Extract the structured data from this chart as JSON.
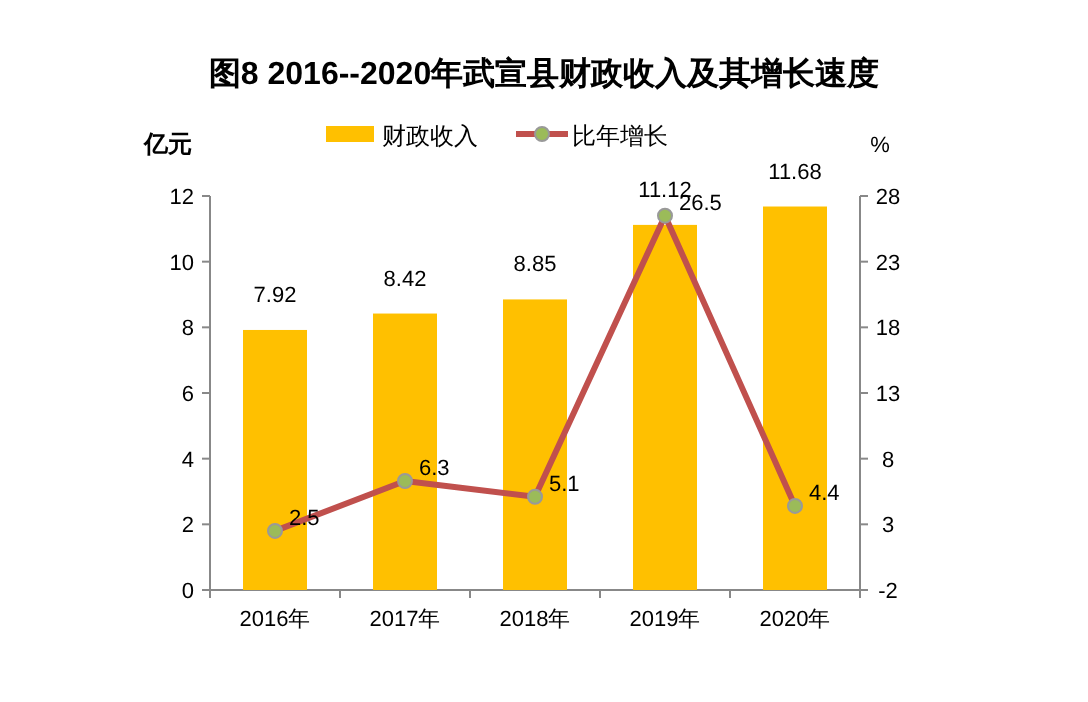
{
  "chart_data": {
    "type": "bar",
    "title": "图8  2016--2020年武宣县财政收入及其增长速度",
    "ylabel": "亿元",
    "y2label": "%",
    "categories": [
      "2016年",
      "2017年",
      "2018年",
      "2019年",
      "2020年"
    ],
    "series": [
      {
        "name": "财政收入",
        "color": "#ffc000",
        "values": [
          7.92,
          8.42,
          8.85,
          11.12,
          11.68
        ]
      },
      {
        "name": "比年增长",
        "type": "line",
        "axis": "y2",
        "color": "#c0504d",
        "values": [
          2.5,
          6.3,
          5.1,
          26.5,
          4.4
        ]
      }
    ],
    "ylim": [
      0,
      12
    ],
    "yticks": [
      0,
      2,
      4,
      6,
      8,
      10,
      12
    ],
    "y2lim": [
      -2,
      28
    ],
    "y2ticks": [
      -2,
      3,
      8,
      13,
      18,
      23,
      28
    ],
    "data_labels": true,
    "legend": "top",
    "grid": false,
    "marker": "circle",
    "line_style": "solid"
  }
}
